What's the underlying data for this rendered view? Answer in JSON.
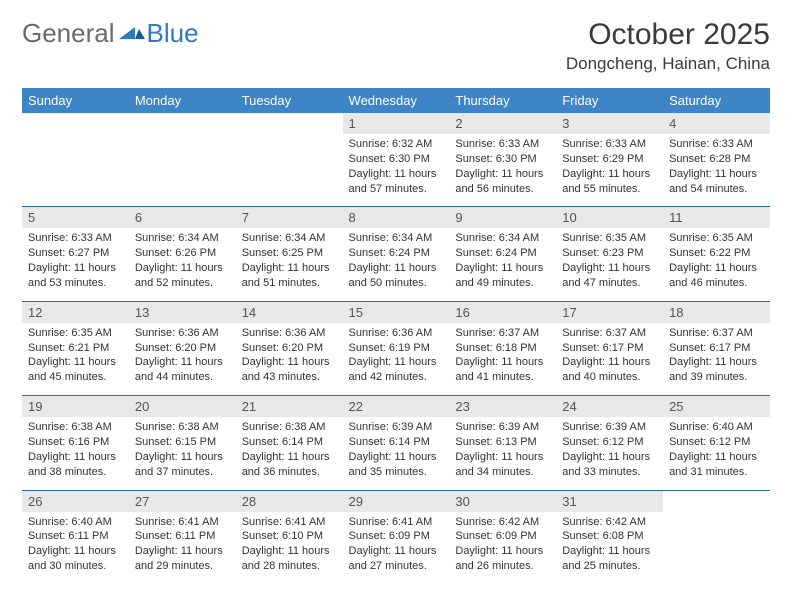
{
  "logo": {
    "text1": "General",
    "text2": "Blue"
  },
  "title": "October 2025",
  "location": "Dongcheng, Hainan, China",
  "colors": {
    "header_bg": "#3d85c6",
    "header_fg": "#ffffff",
    "daynum_bg": "#e8e8e8",
    "sep": "#2f6da4",
    "logo_gray": "#6a6a6a",
    "logo_blue": "#2f7bbf"
  },
  "dow": [
    "Sunday",
    "Monday",
    "Tuesday",
    "Wednesday",
    "Thursday",
    "Friday",
    "Saturday"
  ],
  "weeks": [
    {
      "days": [
        null,
        null,
        null,
        {
          "n": "1",
          "sr": "6:32 AM",
          "ss": "6:30 PM",
          "dl": "11 hours and 57 minutes."
        },
        {
          "n": "2",
          "sr": "6:33 AM",
          "ss": "6:30 PM",
          "dl": "11 hours and 56 minutes."
        },
        {
          "n": "3",
          "sr": "6:33 AM",
          "ss": "6:29 PM",
          "dl": "11 hours and 55 minutes."
        },
        {
          "n": "4",
          "sr": "6:33 AM",
          "ss": "6:28 PM",
          "dl": "11 hours and 54 minutes."
        }
      ]
    },
    {
      "days": [
        {
          "n": "5",
          "sr": "6:33 AM",
          "ss": "6:27 PM",
          "dl": "11 hours and 53 minutes."
        },
        {
          "n": "6",
          "sr": "6:34 AM",
          "ss": "6:26 PM",
          "dl": "11 hours and 52 minutes."
        },
        {
          "n": "7",
          "sr": "6:34 AM",
          "ss": "6:25 PM",
          "dl": "11 hours and 51 minutes."
        },
        {
          "n": "8",
          "sr": "6:34 AM",
          "ss": "6:24 PM",
          "dl": "11 hours and 50 minutes."
        },
        {
          "n": "9",
          "sr": "6:34 AM",
          "ss": "6:24 PM",
          "dl": "11 hours and 49 minutes."
        },
        {
          "n": "10",
          "sr": "6:35 AM",
          "ss": "6:23 PM",
          "dl": "11 hours and 47 minutes."
        },
        {
          "n": "11",
          "sr": "6:35 AM",
          "ss": "6:22 PM",
          "dl": "11 hours and 46 minutes."
        }
      ]
    },
    {
      "days": [
        {
          "n": "12",
          "sr": "6:35 AM",
          "ss": "6:21 PM",
          "dl": "11 hours and 45 minutes."
        },
        {
          "n": "13",
          "sr": "6:36 AM",
          "ss": "6:20 PM",
          "dl": "11 hours and 44 minutes."
        },
        {
          "n": "14",
          "sr": "6:36 AM",
          "ss": "6:20 PM",
          "dl": "11 hours and 43 minutes."
        },
        {
          "n": "15",
          "sr": "6:36 AM",
          "ss": "6:19 PM",
          "dl": "11 hours and 42 minutes."
        },
        {
          "n": "16",
          "sr": "6:37 AM",
          "ss": "6:18 PM",
          "dl": "11 hours and 41 minutes."
        },
        {
          "n": "17",
          "sr": "6:37 AM",
          "ss": "6:17 PM",
          "dl": "11 hours and 40 minutes."
        },
        {
          "n": "18",
          "sr": "6:37 AM",
          "ss": "6:17 PM",
          "dl": "11 hours and 39 minutes."
        }
      ]
    },
    {
      "days": [
        {
          "n": "19",
          "sr": "6:38 AM",
          "ss": "6:16 PM",
          "dl": "11 hours and 38 minutes."
        },
        {
          "n": "20",
          "sr": "6:38 AM",
          "ss": "6:15 PM",
          "dl": "11 hours and 37 minutes."
        },
        {
          "n": "21",
          "sr": "6:38 AM",
          "ss": "6:14 PM",
          "dl": "11 hours and 36 minutes."
        },
        {
          "n": "22",
          "sr": "6:39 AM",
          "ss": "6:14 PM",
          "dl": "11 hours and 35 minutes."
        },
        {
          "n": "23",
          "sr": "6:39 AM",
          "ss": "6:13 PM",
          "dl": "11 hours and 34 minutes."
        },
        {
          "n": "24",
          "sr": "6:39 AM",
          "ss": "6:12 PM",
          "dl": "11 hours and 33 minutes."
        },
        {
          "n": "25",
          "sr": "6:40 AM",
          "ss": "6:12 PM",
          "dl": "11 hours and 31 minutes."
        }
      ]
    },
    {
      "days": [
        {
          "n": "26",
          "sr": "6:40 AM",
          "ss": "6:11 PM",
          "dl": "11 hours and 30 minutes."
        },
        {
          "n": "27",
          "sr": "6:41 AM",
          "ss": "6:11 PM",
          "dl": "11 hours and 29 minutes."
        },
        {
          "n": "28",
          "sr": "6:41 AM",
          "ss": "6:10 PM",
          "dl": "11 hours and 28 minutes."
        },
        {
          "n": "29",
          "sr": "6:41 AM",
          "ss": "6:09 PM",
          "dl": "11 hours and 27 minutes."
        },
        {
          "n": "30",
          "sr": "6:42 AM",
          "ss": "6:09 PM",
          "dl": "11 hours and 26 minutes."
        },
        {
          "n": "31",
          "sr": "6:42 AM",
          "ss": "6:08 PM",
          "dl": "11 hours and 25 minutes."
        },
        null
      ]
    }
  ],
  "labels": {
    "sunrise": "Sunrise:",
    "sunset": "Sunset:",
    "daylight": "Daylight:"
  }
}
